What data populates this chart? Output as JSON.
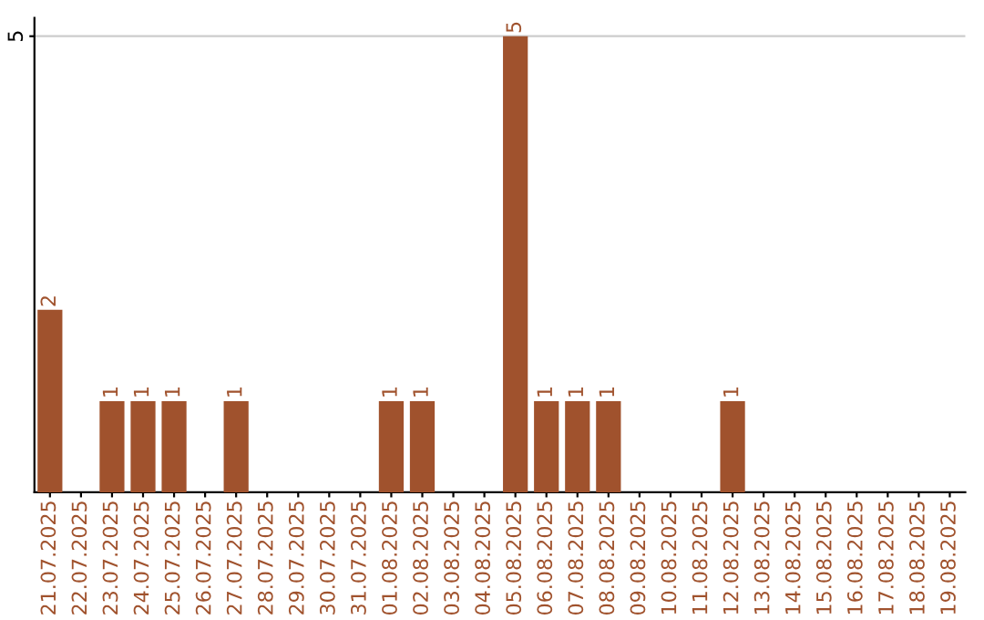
{
  "chart_data": {
    "type": "bar",
    "categories": [
      "21.07.2025",
      "22.07.2025",
      "23.07.2025",
      "24.07.2025",
      "25.07.2025",
      "26.07.2025",
      "27.07.2025",
      "28.07.2025",
      "29.07.2025",
      "30.07.2025",
      "31.07.2025",
      "01.08.2025",
      "02.08.2025",
      "03.08.2025",
      "04.08.2025",
      "05.08.2025",
      "06.08.2025",
      "07.08.2025",
      "08.08.2025",
      "09.08.2025",
      "10.08.2025",
      "11.08.2025",
      "12.08.2025",
      "13.08.2025",
      "14.08.2025",
      "15.08.2025",
      "16.08.2025",
      "17.08.2025",
      "18.08.2025",
      "19.08.2025"
    ],
    "values": [
      2,
      0,
      1,
      1,
      1,
      0,
      1,
      0,
      0,
      0,
      0,
      1,
      1,
      0,
      0,
      5,
      1,
      1,
      1,
      0,
      0,
      0,
      1,
      0,
      0,
      0,
      0,
      0,
      0,
      0
    ],
    "value_labels": [
      "2",
      null,
      "1",
      "1",
      "1",
      null,
      "1",
      null,
      null,
      null,
      null,
      "1",
      "1",
      null,
      null,
      "5",
      "1",
      "1",
      "1",
      null,
      null,
      null,
      "1",
      null,
      null,
      null,
      null,
      null,
      null,
      null
    ],
    "color": "#a0522d",
    "ylim": [
      0,
      5.2
    ],
    "yticks": [
      5
    ],
    "grid": "y",
    "legend": false
  }
}
